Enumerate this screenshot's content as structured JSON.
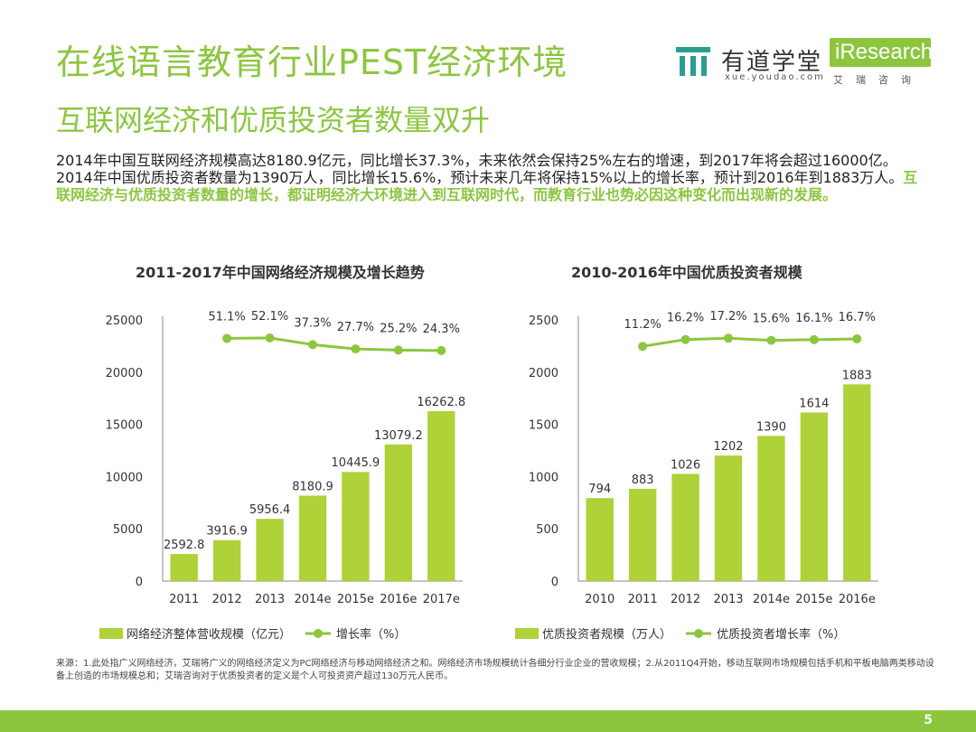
{
  "page": {
    "title": "在线语言教育行业PEST经济环境",
    "subtitle": "互联网经济和优质投资者数量双升",
    "intro_plain": "2014年中国互联网经济规模高达8180.9亿元，同比增长37.3%，未来依然会保持25%左右的增速，到2017年将会超过16000亿。2014年中国优质投资者数量为1390万人，同比增长15.6%，预计未来几年将保持15%以上的增长率，预计到2016年到1883万人。",
    "intro_highlight": "互联网经济与优质投资者数量的增长，都证明经济大环境进入到互联网时代，而教育行业也势必因这种变化而出现新的发展。",
    "source": "来源：1.此处指广义网络经济，艾瑞将广义的网络经济定义为PC网络经济与移动网络经济之和。网络经济市场规模统计各细分行业企业的营收规模；2.从2011Q4开始，移动互联网市场规模包括手机和平板电脑两类移动设备上创造的市场规模总和；艾瑞咨询对于优质投资者的定义是个人可投资资产超过130万元人民币。",
    "page_number": "5"
  },
  "logos": {
    "youdao_name": "有道学堂",
    "youdao_url": "xue.youdao.com",
    "iresearch_name": "iResearch",
    "iresearch_cn": "艾瑞咨询"
  },
  "colors": {
    "accent": "#8cc63f",
    "bar": "#aed238",
    "line": "#8cc63f"
  },
  "chart_data": [
    {
      "type": "bar",
      "title": "2011-2017年中国网络经济规模及增长趋势",
      "categories": [
        "2011",
        "2012",
        "2013",
        "2014e",
        "2015e",
        "2016e",
        "2017e"
      ],
      "ylim": [
        0,
        25000
      ],
      "yticks": [
        0,
        5000,
        10000,
        15000,
        20000,
        25000
      ],
      "series": [
        {
          "name": "网络经济整体营收规模（亿元）",
          "kind": "bar",
          "values": [
            2592.8,
            3916.9,
            5956.4,
            8180.9,
            10445.9,
            13079.2,
            16262.8
          ],
          "labels": [
            "2592.8",
            "3916.9",
            "5956.4",
            "8180.9",
            "10445.9",
            "13079.2",
            "16262.8"
          ]
        },
        {
          "name": "增长率（%）",
          "kind": "line",
          "values": [
            null,
            51.1,
            52.1,
            37.3,
            27.7,
            25.2,
            24.3
          ],
          "labels": [
            "",
            "51.1%",
            "52.1%",
            "37.3%",
            "27.7%",
            "25.2%",
            "24.3%"
          ]
        }
      ],
      "legend": "bottom"
    },
    {
      "type": "bar",
      "title": "2010-2016年中国优质投资者规模",
      "categories": [
        "2010",
        "2011",
        "2012",
        "2013",
        "2014e",
        "2015e",
        "2016e"
      ],
      "ylim": [
        0,
        2500
      ],
      "yticks": [
        0,
        500,
        1000,
        1500,
        2000,
        2500
      ],
      "series": [
        {
          "name": "优质投资者规模（万人）",
          "kind": "bar",
          "values": [
            794,
            883,
            1026,
            1202,
            1390,
            1614,
            1883
          ],
          "labels": [
            "794",
            "883",
            "1026",
            "1202",
            "1390",
            "1614",
            "1883"
          ]
        },
        {
          "name": "优质投资者增长率（%）",
          "kind": "line",
          "values": [
            null,
            11.2,
            16.2,
            17.2,
            15.6,
            16.1,
            16.7
          ],
          "labels": [
            "",
            "11.2%",
            "16.2%",
            "17.2%",
            "15.6%",
            "16.1%",
            "16.7%"
          ]
        }
      ],
      "legend": "bottom"
    }
  ]
}
